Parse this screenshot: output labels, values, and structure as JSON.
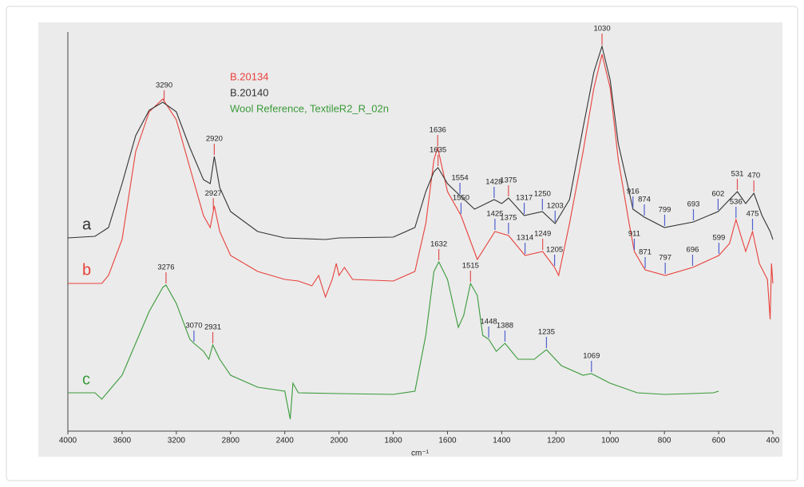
{
  "chart_data": {
    "type": "line",
    "x_label": "cm⁻¹",
    "xlim": [
      4000,
      400
    ],
    "x_scale_break": 2000,
    "x_scale_expansion": 2,
    "xticks": [
      4000,
      3600,
      3200,
      2800,
      2400,
      2000,
      1800,
      1600,
      1400,
      1200,
      1000,
      800,
      600,
      400
    ],
    "ylim": [
      0,
      100
    ],
    "legend": "upper left",
    "series": [
      {
        "name": "B.20134",
        "label": "b",
        "color": "#e8403a",
        "x": [
          4000,
          3750,
          3700,
          3600,
          3500,
          3400,
          3300,
          3200,
          3100,
          3000,
          2950,
          2920,
          2880,
          2800,
          2600,
          2400,
          2300,
          2200,
          2150,
          2100,
          2050,
          2020,
          2000,
          1980,
          1950,
          1800,
          1720,
          1680,
          1650,
          1636,
          1600,
          1550,
          1490,
          1425,
          1375,
          1314,
          1249,
          1205,
          1190,
          1150,
          1100,
          1060,
          1030,
          1000,
          970,
          930,
          911,
          871,
          797,
          696,
          599,
          560,
          536,
          500,
          475,
          450,
          420,
          410,
          405,
          400
        ],
        "values": [
          37,
          37,
          39,
          48,
          70,
          80,
          83.2,
          78,
          66,
          54,
          51,
          56.4,
          50,
          44,
          40,
          38,
          37.6,
          36.4,
          39,
          33.6,
          38,
          42,
          39,
          41,
          38,
          37.6,
          40,
          52,
          68,
          71,
          60,
          54,
          43,
          50,
          49,
          44,
          45,
          41,
          39,
          52,
          70,
          86,
          94.4,
          86,
          68,
          52,
          45,
          40.4,
          39,
          41,
          44,
          47,
          53,
          45,
          50,
          42,
          38,
          28,
          42,
          37
        ],
        "peaks": [
          {
            "x": 2927,
            "color": "#e05050"
          },
          {
            "x": 1636,
            "color": "#e05050"
          },
          {
            "x": 1550,
            "color": "#5060d0"
          },
          {
            "x": 1425,
            "color": "#5060d0"
          },
          {
            "x": 1375,
            "color": "#5060d0"
          },
          {
            "x": 1314,
            "color": "#5060d0"
          },
          {
            "x": 1249,
            "color": "#e05050"
          },
          {
            "x": 1205,
            "color": "#5060d0"
          },
          {
            "x": 911,
            "color": "#5060d0"
          },
          {
            "x": 871,
            "color": "#5060d0"
          },
          {
            "x": 797,
            "color": "#5060d0"
          },
          {
            "x": 696,
            "color": "#5060d0"
          },
          {
            "x": 599,
            "color": "#5060d0"
          },
          {
            "x": 536,
            "color": "#5060d0"
          },
          {
            "x": 475,
            "color": "#5060d0"
          }
        ]
      },
      {
        "name": "B.20140",
        "label": "a",
        "color": "#333333",
        "x": [
          4000,
          3800,
          3700,
          3600,
          3500,
          3400,
          3300,
          3200,
          3100,
          3000,
          2950,
          2920,
          2880,
          2800,
          2600,
          2400,
          2100,
          2000,
          1800,
          1720,
          1680,
          1650,
          1635,
          1600,
          1554,
          1500,
          1428,
          1400,
          1375,
          1317,
          1250,
          1203,
          1150,
          1100,
          1060,
          1030,
          1000,
          970,
          930,
          916,
          874,
          800,
          693,
          602,
          560,
          531,
          500,
          470,
          440,
          410,
          400
        ],
        "values": [
          48.4,
          48.8,
          51,
          62,
          74,
          80.4,
          82.4,
          80,
          71,
          63,
          62,
          68.8,
          61,
          55,
          50,
          48.4,
          48,
          48.4,
          48.6,
          51,
          60,
          65,
          66,
          62,
          59,
          55.6,
          58,
          57,
          58.4,
          54,
          55,
          52,
          58,
          76,
          90,
          96.4,
          88,
          72,
          60,
          55.6,
          53.6,
          51,
          52.4,
          55,
          58,
          60,
          57,
          59.6,
          54,
          50,
          48
        ],
        "peaks": [
          {
            "x": 3290,
            "color": "#e05050"
          },
          {
            "x": 2920,
            "color": "#e05050"
          },
          {
            "x": 1635,
            "color": "#e05050"
          },
          {
            "x": 1554,
            "color": "#5060d0"
          },
          {
            "x": 1428,
            "color": "#5060d0"
          },
          {
            "x": 1375,
            "color": "#e05050"
          },
          {
            "x": 1317,
            "color": "#5060d0"
          },
          {
            "x": 1250,
            "color": "#5060d0"
          },
          {
            "x": 1203,
            "color": "#5060d0"
          },
          {
            "x": 1030,
            "color": "#e05050"
          },
          {
            "x": 916,
            "color": "#5060d0"
          },
          {
            "x": 874,
            "color": "#5060d0"
          },
          {
            "x": 799,
            "color": "#5060d0"
          },
          {
            "x": 693,
            "color": "#5060d0"
          },
          {
            "x": 602,
            "color": "#5060d0"
          },
          {
            "x": 531,
            "color": "#e05050"
          },
          {
            "x": 470,
            "color": "#e05050"
          }
        ]
      },
      {
        "name": "Wool Reference, TextileR2_R_02n",
        "label": "c",
        "color": "#3a9a3a",
        "x": [
          4000,
          3800,
          3750,
          3700,
          3600,
          3500,
          3400,
          3300,
          3276,
          3200,
          3100,
          3070,
          3000,
          2960,
          2931,
          2880,
          2800,
          2600,
          2400,
          2360,
          2340,
          2300,
          2000,
          1800,
          1720,
          1680,
          1650,
          1632,
          1600,
          1560,
          1540,
          1515,
          1490,
          1470,
          1448,
          1420,
          1388,
          1340,
          1280,
          1235,
          1180,
          1100,
          1069,
          1000,
          900,
          800,
          700,
          620,
          600
        ],
        "values": [
          9.6,
          9.6,
          8,
          10,
          14,
          22,
          30,
          36,
          36.6,
          32,
          23,
          22,
          20,
          18,
          21.6,
          18,
          14,
          11,
          10,
          3,
          12,
          9.6,
          9.4,
          9.2,
          10,
          24,
          40,
          42.4,
          38,
          26,
          29,
          37,
          34,
          24,
          23,
          20,
          22,
          18,
          18,
          20.4,
          16.4,
          14,
          14.4,
          12,
          9.6,
          9.2,
          9.4,
          9.6,
          10
        ],
        "peaks": [
          {
            "x": 3276,
            "color": "#e05050"
          },
          {
            "x": 3070,
            "color": "#5060d0"
          },
          {
            "x": 2931,
            "color": "#e05050"
          },
          {
            "x": 1632,
            "color": "#e05050"
          },
          {
            "x": 1515,
            "color": "#e05050"
          },
          {
            "x": 1448,
            "color": "#5060d0"
          },
          {
            "x": 1388,
            "color": "#5060d0"
          },
          {
            "x": 1235,
            "color": "#5060d0"
          },
          {
            "x": 1069,
            "color": "#5060d0"
          }
        ]
      }
    ]
  }
}
